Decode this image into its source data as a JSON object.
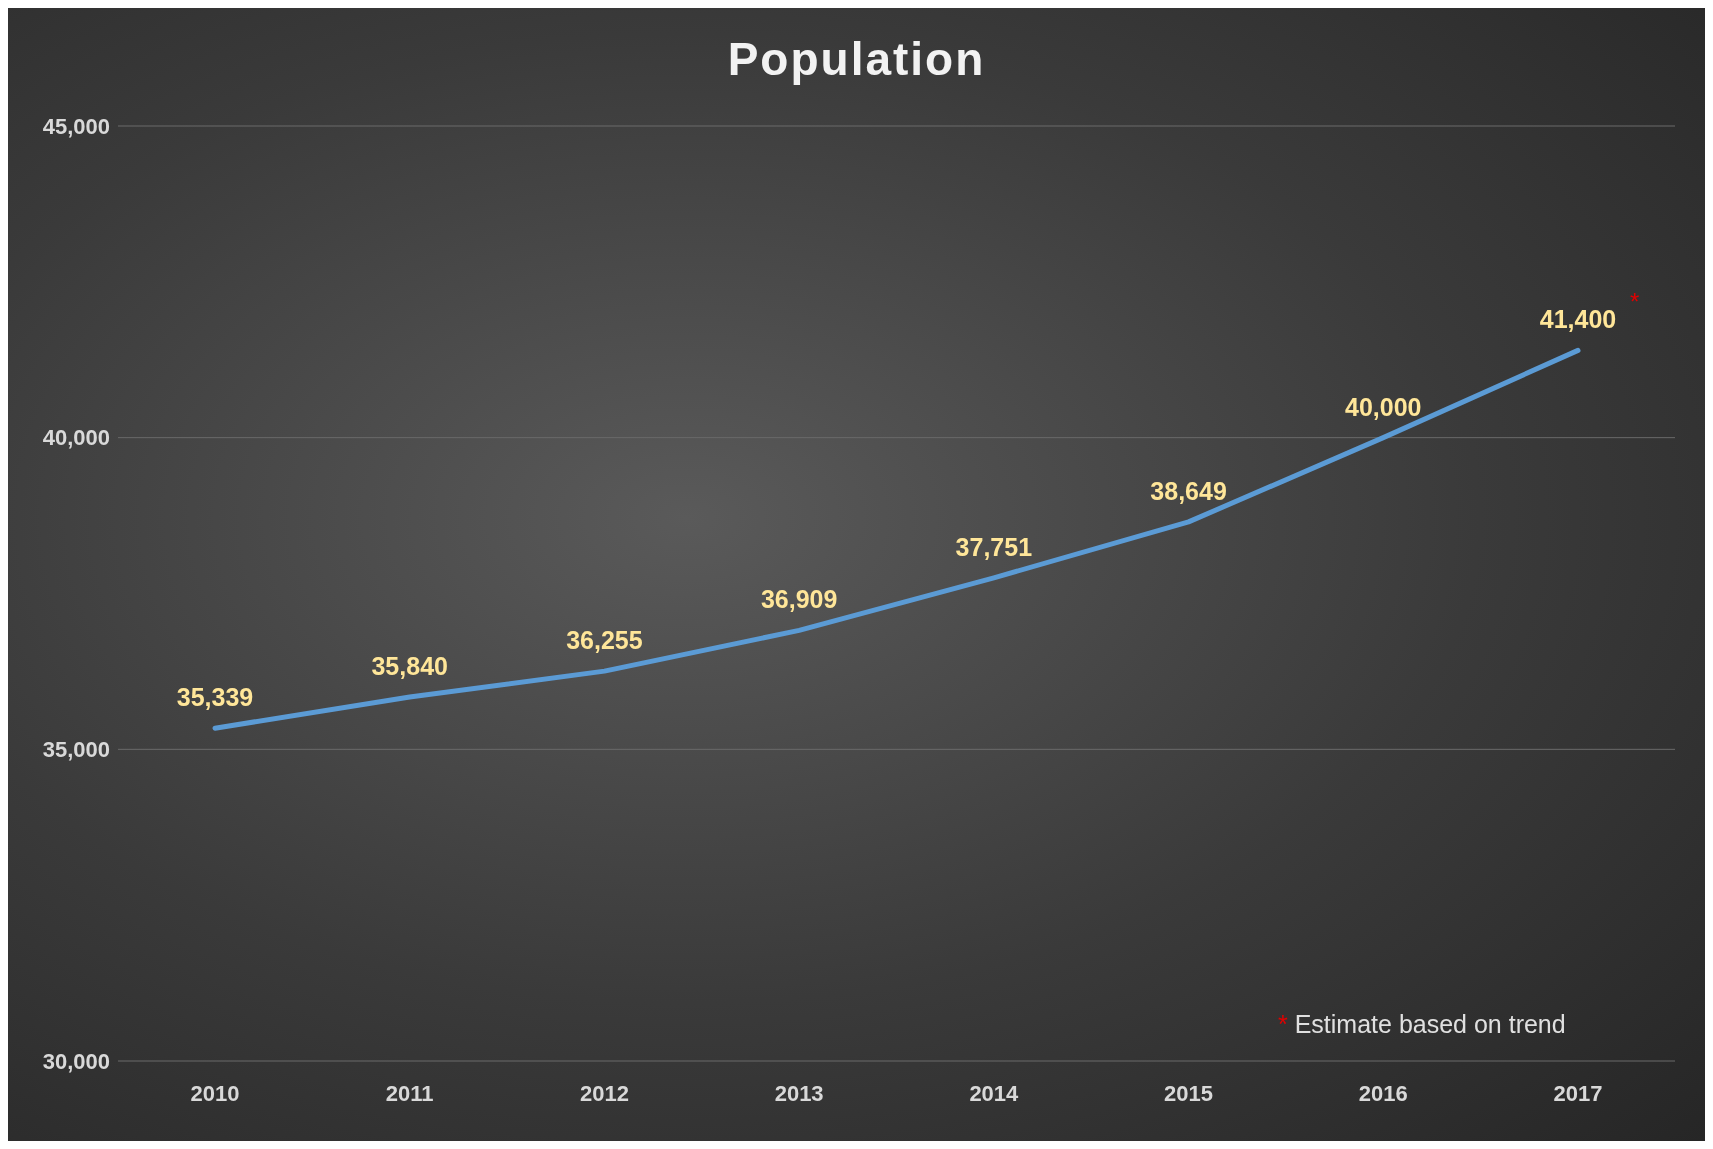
{
  "chart_data": {
    "type": "line",
    "title": "Population",
    "categories": [
      "2010",
      "2011",
      "2012",
      "2013",
      "2014",
      "2015",
      "2016",
      "2017"
    ],
    "series": [
      {
        "color": "#5b9bd5",
        "values": [
          35339,
          35840,
          36255,
          36909,
          37751,
          38649,
          40000,
          41400
        ]
      }
    ],
    "ylim": [
      30000,
      45000
    ],
    "yticks": [
      {
        "value": 30000,
        "label": "30,000"
      },
      {
        "value": 35000,
        "label": "35,000"
      },
      {
        "value": 40000,
        "label": "40,000"
      },
      {
        "value": 45000,
        "label": "45,000"
      }
    ],
    "value_labels": [
      "35,339",
      "35,840",
      "36,255",
      "36,909",
      "37,751",
      "38,649",
      "40,000",
      "41,400"
    ],
    "grid": "y",
    "legend": false,
    "marker": "none",
    "line_style": "solid",
    "annotations": [
      {
        "text": "*",
        "x": "2017",
        "y": 41400
      },
      "* Estimate based on trend"
    ]
  }
}
